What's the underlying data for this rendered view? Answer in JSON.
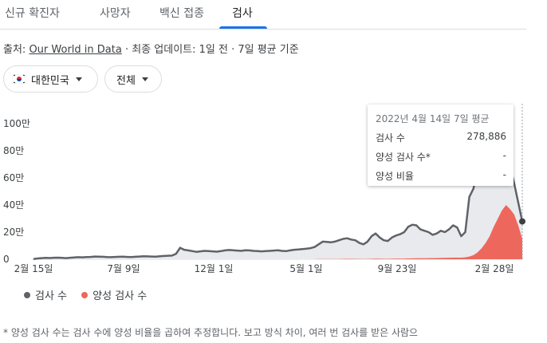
{
  "tabs": [
    "신규 확진자",
    "사망자",
    "백신 접종",
    "검사"
  ],
  "active_tab": 3,
  "source": {
    "prefix": "출처:",
    "link": "Our World in Data",
    "suffix": "· 최종 업데이트: 1일 전 · 7일 평균 기준"
  },
  "filters": {
    "country": "대한민국",
    "range": "전체"
  },
  "tooltip": {
    "date": "2022년 4월 14일 7일 평균",
    "rows": [
      {
        "label": "검사 수",
        "value": "278,886"
      },
      {
        "label": "양성 검사 수*",
        "value": "-"
      },
      {
        "label": "양성 비율",
        "value": "-"
      }
    ]
  },
  "legend": [
    {
      "label": "검사 수",
      "color": "#5f6368"
    },
    {
      "label": "양성 검사 수",
      "color": "#ee675c"
    }
  ],
  "footnote": "* 양성 검사 수는 검사 수에 양성 비율을 곱하여 추정합니다. 보고 방식 차이, 여러 번 검사를 받은 사람으",
  "chart_data": {
    "type": "area",
    "x_tick_labels": [
      "2월 15일",
      "7월 9일",
      "12월 1일",
      "5월 1일",
      "9월 23일",
      "2월 28일"
    ],
    "y_tick_labels": [
      "0",
      "20만",
      "40만",
      "60만",
      "80만",
      "100만"
    ],
    "ylim": [
      0,
      1000000
    ],
    "series": [
      {
        "name": "검사 수",
        "color": "#5f6368",
        "fill": "#e8eaed",
        "values": [
          2000,
          6000,
          8000,
          10000,
          9000,
          11000,
          12000,
          10000,
          8000,
          11000,
          13000,
          15000,
          14000,
          16000,
          17000,
          20000,
          19000,
          18000,
          16000,
          15000,
          17000,
          18000,
          19000,
          17000,
          16000,
          18000,
          20000,
          22000,
          21000,
          20000,
          19000,
          22000,
          24000,
          26000,
          27000,
          40000,
          85000,
          70000,
          65000,
          60000,
          55000,
          58000,
          62000,
          60000,
          58000,
          56000,
          60000,
          65000,
          68000,
          66000,
          64000,
          62000,
          66000,
          65000,
          62000,
          60000,
          58000,
          60000,
          62000,
          64000,
          66000,
          62000,
          60000,
          65000,
          70000,
          72000,
          75000,
          78000,
          82000,
          90000,
          110000,
          130000,
          128000,
          125000,
          130000,
          140000,
          150000,
          155000,
          145000,
          140000,
          120000,
          110000,
          130000,
          170000,
          190000,
          160000,
          140000,
          135000,
          160000,
          175000,
          185000,
          200000,
          240000,
          255000,
          250000,
          220000,
          210000,
          200000,
          180000,
          190000,
          210000,
          200000,
          220000,
          250000,
          235000,
          170000,
          200000,
          460000,
          520000,
          650000,
          640000,
          610000,
          700000,
          760000,
          820000,
          920000,
          760000,
          690000,
          560000,
          420000,
          278886
        ]
      },
      {
        "name": "양성 검사 수",
        "color": "#ee675c",
        "values": [
          0,
          0,
          0,
          0,
          0,
          0,
          0,
          0,
          0,
          0,
          0,
          0,
          0,
          0,
          0,
          0,
          0,
          0,
          0,
          0,
          0,
          0,
          0,
          0,
          0,
          0,
          0,
          0,
          0,
          0,
          0,
          0,
          0,
          0,
          0,
          0,
          0,
          0,
          0,
          0,
          0,
          0,
          0,
          0,
          0,
          0,
          0,
          0,
          0,
          0,
          0,
          0,
          0,
          0,
          0,
          0,
          0,
          0,
          0,
          0,
          0,
          0,
          0,
          0,
          0,
          0,
          0,
          0,
          0,
          0,
          1000,
          1500,
          1500,
          1500,
          2000,
          2000,
          2500,
          3000,
          3000,
          2500,
          2500,
          2000,
          2500,
          3000,
          4000,
          3500,
          3000,
          3000,
          3500,
          4000,
          4500,
          5000,
          6000,
          6500,
          7000,
          7000,
          7500,
          8000,
          8500,
          9000,
          9500,
          10000,
          11000,
          12000,
          12000,
          12000,
          14000,
          20000,
          30000,
          50000,
          80000,
          120000,
          170000,
          240000,
          300000,
          360000,
          400000,
          370000,
          330000,
          250000,
          150000
        ]
      }
    ],
    "grid": false
  }
}
